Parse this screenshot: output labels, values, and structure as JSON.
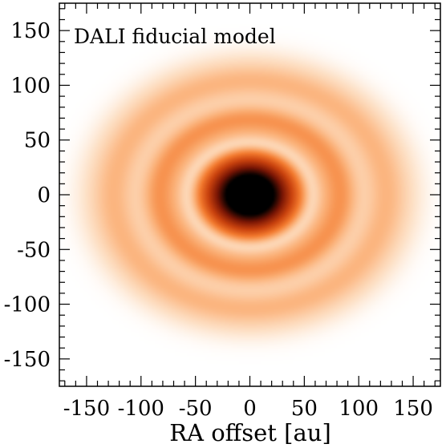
{
  "chart_data": {
    "type": "heatmap",
    "annotation": "DALI fiducial model",
    "xlabel": "RA offset [au]",
    "ylabel": "",
    "xlim": [
      -175,
      175
    ],
    "ylim": [
      -175,
      175
    ],
    "x_ticks": [
      -150,
      -100,
      -50,
      0,
      50,
      100,
      150
    ],
    "y_ticks": [
      150,
      100,
      50,
      0,
      -50,
      -100,
      -150
    ],
    "x_tick_labels": [
      "-150",
      "-100",
      "-50",
      "0",
      "50",
      "100",
      "150"
    ],
    "y_tick_labels": [
      "150",
      "100",
      "50",
      "0",
      "-50",
      "-100",
      "-150"
    ],
    "colormap": [
      "#ffffff",
      "#fde0c5",
      "#fbb077",
      "#f37a2e",
      "#c9420e",
      "#7a1605",
      "#000000"
    ],
    "emission_model": {
      "center": [
        0,
        0
      ],
      "axis_ratio_y_over_x": 0.83,
      "central_core_radius_au": 35,
      "gaps_au": [
        58,
        108
      ],
      "rings_au": [
        84,
        125
      ],
      "outer_extent_au": 150
    }
  }
}
